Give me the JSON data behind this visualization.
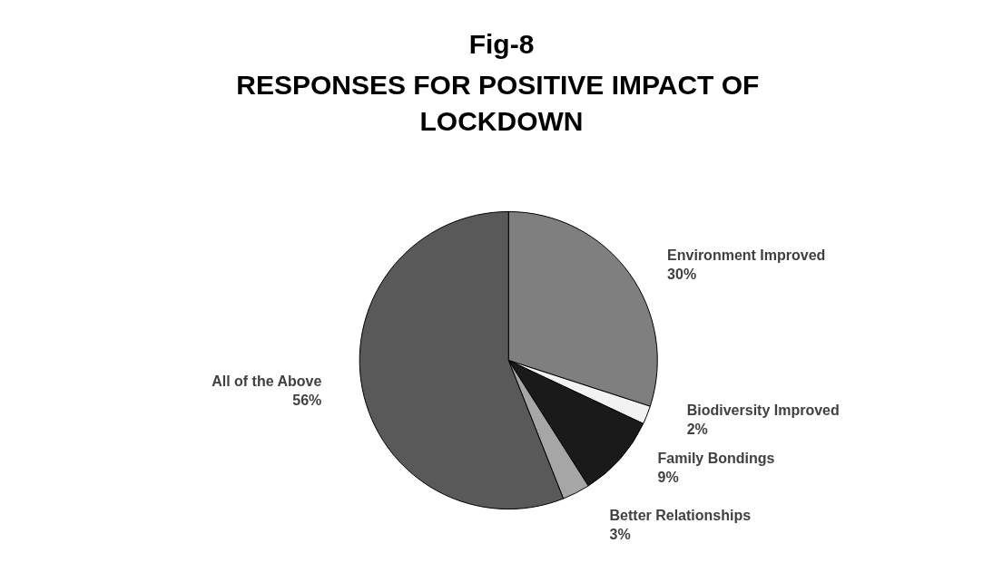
{
  "chart_data": {
    "type": "pie",
    "title": "Fig-8",
    "subtitle": "RESPONSES FOR POSITIVE IMPACT OF LOCKDOWN",
    "categories": [
      "Environment Improved",
      "Biodiversity Improved",
      "Family Bondings",
      "Better Relationships",
      "All of the Above"
    ],
    "values": [
      30,
      2,
      9,
      3,
      56
    ],
    "value_labels": [
      "30%",
      "2%",
      "9%",
      "3%",
      "56%"
    ],
    "colors": [
      "#7f7f7f",
      "#f2f2f2",
      "#1a1a1a",
      "#a6a6a6",
      "#595959"
    ],
    "legend": false
  }
}
